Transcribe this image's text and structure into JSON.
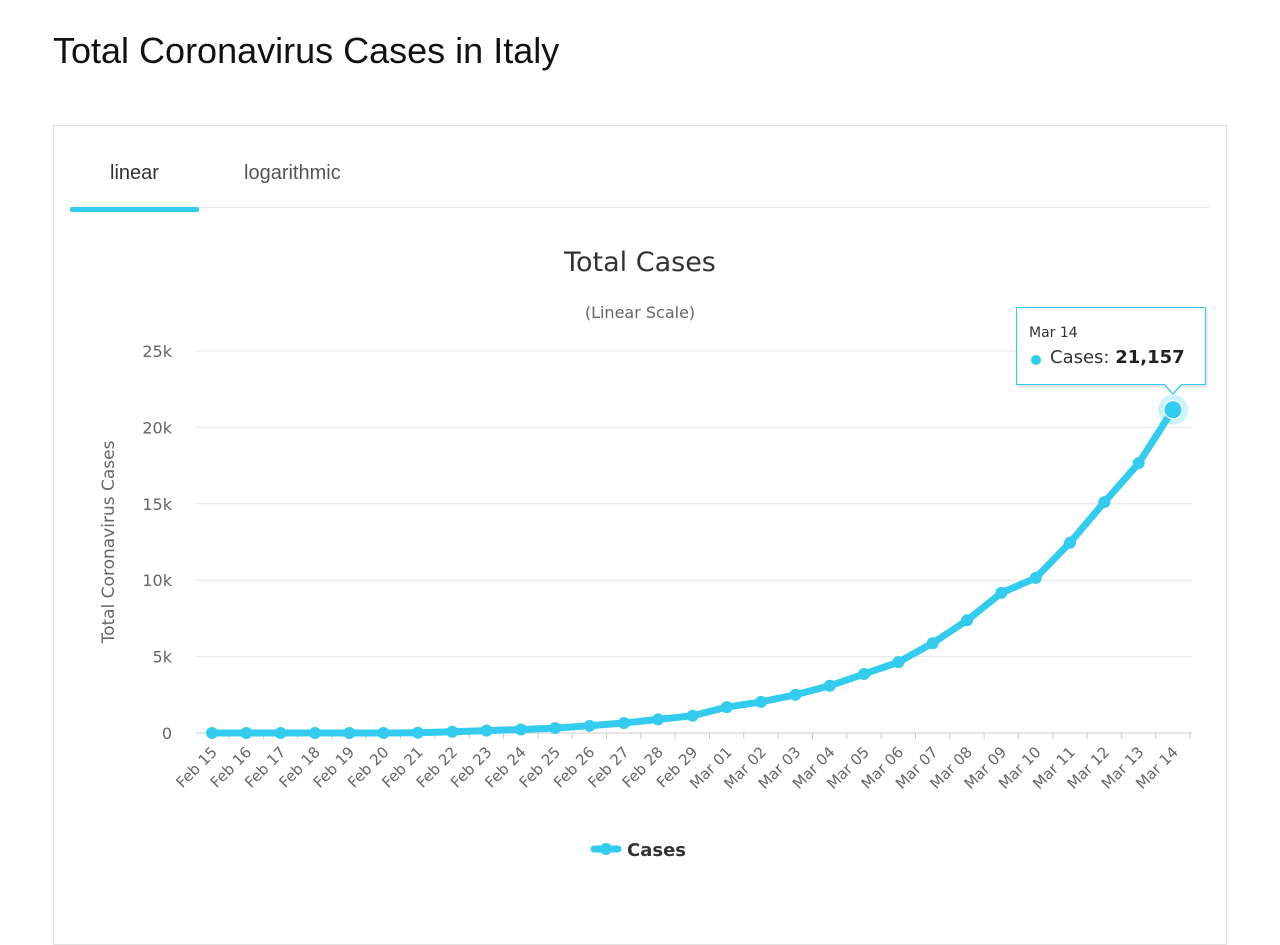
{
  "page": {
    "title": "Total Coronavirus Cases in Italy"
  },
  "tabs": [
    {
      "label": "linear",
      "active": true
    },
    {
      "label": "logarithmic",
      "active": false
    }
  ],
  "colors": {
    "accent": "#33ccee",
    "grid": "#e6e6e6",
    "text": "#666666"
  },
  "tooltip": {
    "date": "Mar 14",
    "series_label": "Cases:",
    "value": "21,157"
  },
  "chart_data": {
    "type": "line",
    "title": "Total Cases",
    "subtitle": "(Linear Scale)",
    "ylabel": "Total Coronavirus Cases",
    "xlabel": "",
    "ylim": [
      0,
      25000
    ],
    "yticks": [
      0,
      5000,
      10000,
      15000,
      20000,
      25000
    ],
    "ytick_labels": [
      "0",
      "5k",
      "10k",
      "15k",
      "20k",
      "25k"
    ],
    "grid": true,
    "legend": "bottom-center",
    "x": [
      "Feb 15",
      "Feb 16",
      "Feb 17",
      "Feb 18",
      "Feb 19",
      "Feb 20",
      "Feb 21",
      "Feb 22",
      "Feb 23",
      "Feb 24",
      "Feb 25",
      "Feb 26",
      "Feb 27",
      "Feb 28",
      "Feb 29",
      "Mar 01",
      "Mar 02",
      "Mar 03",
      "Mar 04",
      "Mar 05",
      "Mar 06",
      "Mar 07",
      "Mar 08",
      "Mar 09",
      "Mar 10",
      "Mar 11",
      "Mar 12",
      "Mar 13",
      "Mar 14"
    ],
    "series": [
      {
        "name": "Cases",
        "color": "#33ccee",
        "values": [
          3,
          3,
          3,
          3,
          3,
          3,
          20,
          79,
          157,
          229,
          323,
          470,
          655,
          888,
          1128,
          1694,
          2036,
          2502,
          3089,
          3858,
          4636,
          5883,
          7375,
          9172,
          10149,
          12462,
          15113,
          17660,
          21157
        ]
      }
    ]
  }
}
